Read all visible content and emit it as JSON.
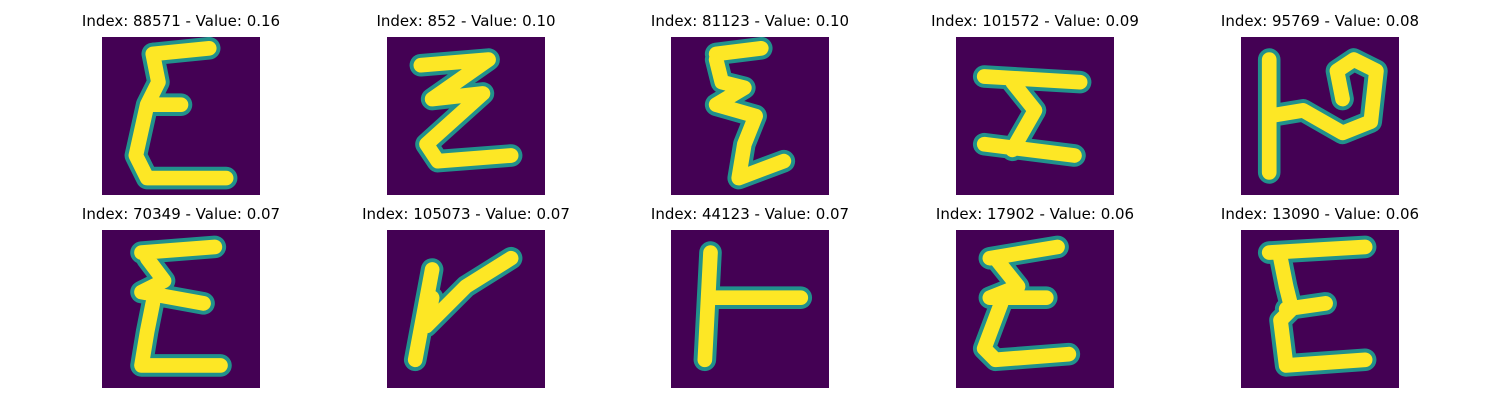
{
  "colormap": {
    "background": "#440154",
    "mid": "#21918c",
    "stroke": "#fde725"
  },
  "panels": [
    {
      "title": "Index: 88571 - Value: 0.16",
      "glyph": "sigma-shape"
    },
    {
      "title": "Index: 852 - Value: 0.10",
      "glyph": "double-z-shape"
    },
    {
      "title": "Index: 81123 - Value: 0.10",
      "glyph": "zigzag-shape"
    },
    {
      "title": "Index: 101572 - Value: 0.09",
      "glyph": "rotated-h-shape"
    },
    {
      "title": "Index: 95769 - Value: 0.08",
      "glyph": "p-like-shape"
    },
    {
      "title": "Index: 70349 - Value: 0.07",
      "glyph": "sigma-shape"
    },
    {
      "title": "Index: 105073 - Value: 0.07",
      "glyph": "y-like-shape"
    },
    {
      "title": "Index: 44123 - Value: 0.07",
      "glyph": "t-rotated-shape"
    },
    {
      "title": "Index: 17902 - Value: 0.06",
      "glyph": "epsilon-shape"
    },
    {
      "title": "Index: 13090 - Value: 0.06",
      "glyph": "e-like-shape"
    }
  ]
}
